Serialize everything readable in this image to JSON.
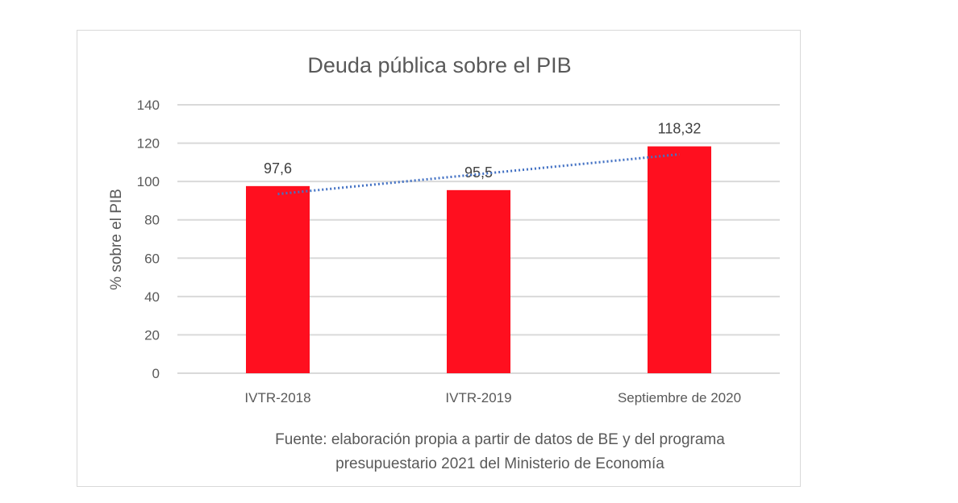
{
  "chart_data": {
    "type": "bar",
    "title": "Deuda pública sobre el PIB",
    "xlabel": "",
    "ylabel": "% sobre el PIB",
    "categories": [
      "IVTR-2018",
      "IVTR-2019",
      "Septiembre de 2020"
    ],
    "values": [
      97.6,
      95.5,
      118.32
    ],
    "data_labels": [
      "97,6",
      "95,5",
      "118,32"
    ],
    "ylim": [
      0,
      140
    ],
    "yticks": [
      0,
      20,
      40,
      60,
      80,
      100,
      120,
      140
    ],
    "grid": true,
    "trendline": {
      "type": "linear",
      "style": "dotted",
      "color": "#4472c4"
    },
    "bar_color": "#ff0f1f"
  },
  "source_lines": [
    "Fuente: elaboración propia a partir de datos de BE y del programa",
    "presupuestario 2021 del Ministerio de Economía"
  ]
}
